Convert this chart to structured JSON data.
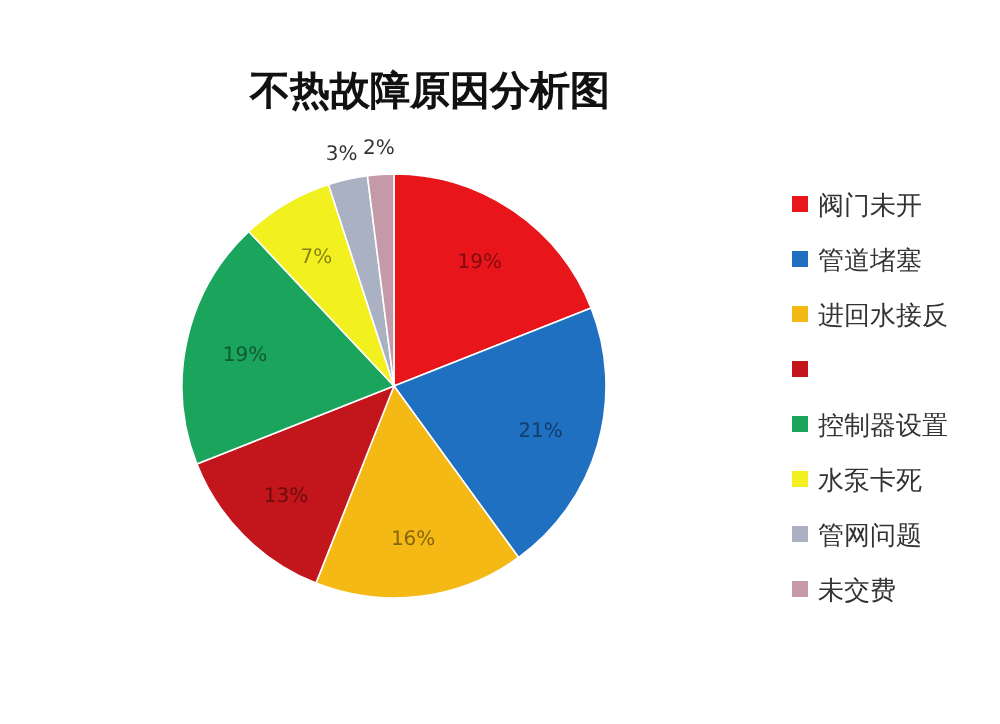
{
  "chart_data": {
    "type": "pie",
    "title": "不热故障原因分析图",
    "categories": [
      "阀门未开",
      "管道堵塞",
      "进回水接反",
      null,
      "控制器设置",
      "水泵卡死",
      "管网问题",
      "未交费"
    ],
    "values": [
      19,
      21,
      16,
      13,
      19,
      7,
      3,
      2
    ],
    "colors": [
      "#e8151b",
      "#1f70c1",
      "#f4b914",
      "#c2161c",
      "#1ba45c",
      "#f3f020",
      "#a9b1c3",
      "#c49aa8"
    ],
    "value_labels": [
      "19%",
      "21%",
      "16%",
      "13%",
      "19%",
      "7%",
      "3%",
      "2%"
    ],
    "legend": "right"
  }
}
